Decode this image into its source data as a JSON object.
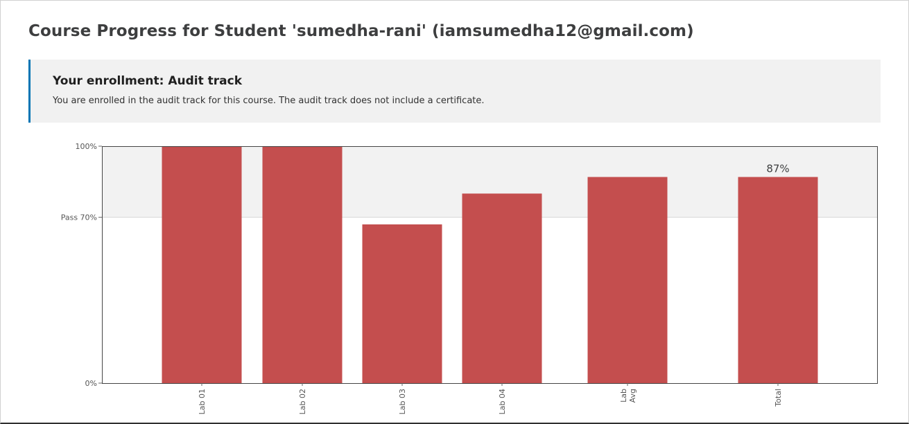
{
  "page": {
    "title": "Course Progress for Student 'sumedha-rani' (iamsumedha12@gmail.com)"
  },
  "enrollment": {
    "heading": "Your enrollment: Audit track",
    "message": "You are enrolled in the audit track for this course. The audit track does not include a certificate."
  },
  "colors": {
    "bar": "#c44e4e",
    "pass_zone": "#f2f2f2",
    "accent": "#0075b4"
  },
  "chart_data": {
    "type": "bar",
    "categories": [
      "Lab 01",
      "Lab 02",
      "Lab 03",
      "Lab 04",
      "Lab Avg",
      "Total"
    ],
    "values": [
      100,
      100,
      67,
      80,
      87,
      87
    ],
    "ylim": [
      0,
      100
    ],
    "y_ticks": [
      {
        "value": 100,
        "label": "100%"
      },
      {
        "value": 70,
        "label": "Pass 70%"
      },
      {
        "value": 0,
        "label": "0%"
      }
    ],
    "pass_threshold": 70,
    "annotations": [
      {
        "category": "Total",
        "label": "87%"
      }
    ]
  }
}
